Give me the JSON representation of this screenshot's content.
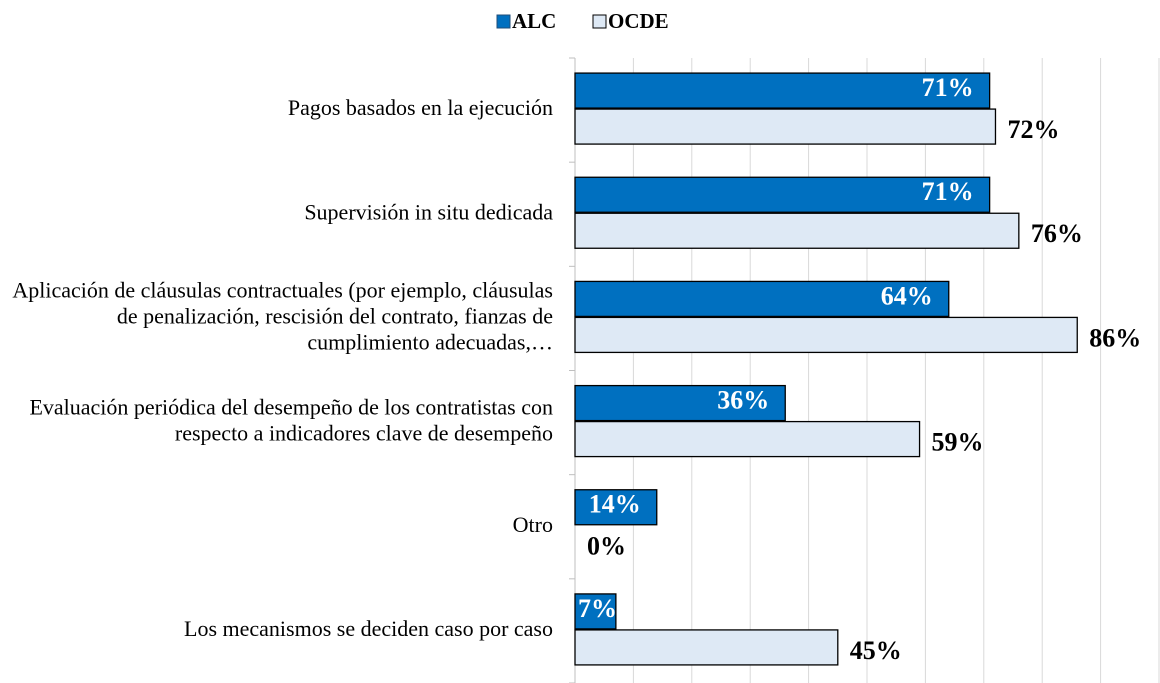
{
  "chart_data": {
    "type": "hbar",
    "categories": [
      "Pagos basados en la ejecución",
      "Supervisión in situ dedicada",
      "Aplicación de cláusulas contractuales (por ejemplo, cláusulas de penalización, rescisión del contrato, fianzas de cumplimiento adecuadas,…",
      "Evaluación periódica del desempeño de los contratistas con respecto a indicadores clave de desempeño",
      "Otro",
      "Los mecanismos se deciden caso por caso"
    ],
    "series": [
      {
        "name": "ALC",
        "color": "#0070c0",
        "values": [
          71,
          71,
          64,
          36,
          14,
          7
        ],
        "value_labels": [
          "71%",
          "71%",
          "64%",
          "36%",
          "14%",
          "7%"
        ]
      },
      {
        "name": "OCDE",
        "color": "#dee9f5",
        "values": [
          72,
          76,
          86,
          59,
          0,
          45
        ],
        "value_labels": [
          "72%",
          "76%",
          "86%",
          "59%",
          "0%",
          "45%"
        ]
      }
    ],
    "xlim": [
      0,
      100
    ],
    "xticks": [
      0,
      10,
      20,
      30,
      40,
      50,
      60,
      70,
      80,
      90,
      100
    ],
    "grid": true,
    "legend": "top"
  }
}
